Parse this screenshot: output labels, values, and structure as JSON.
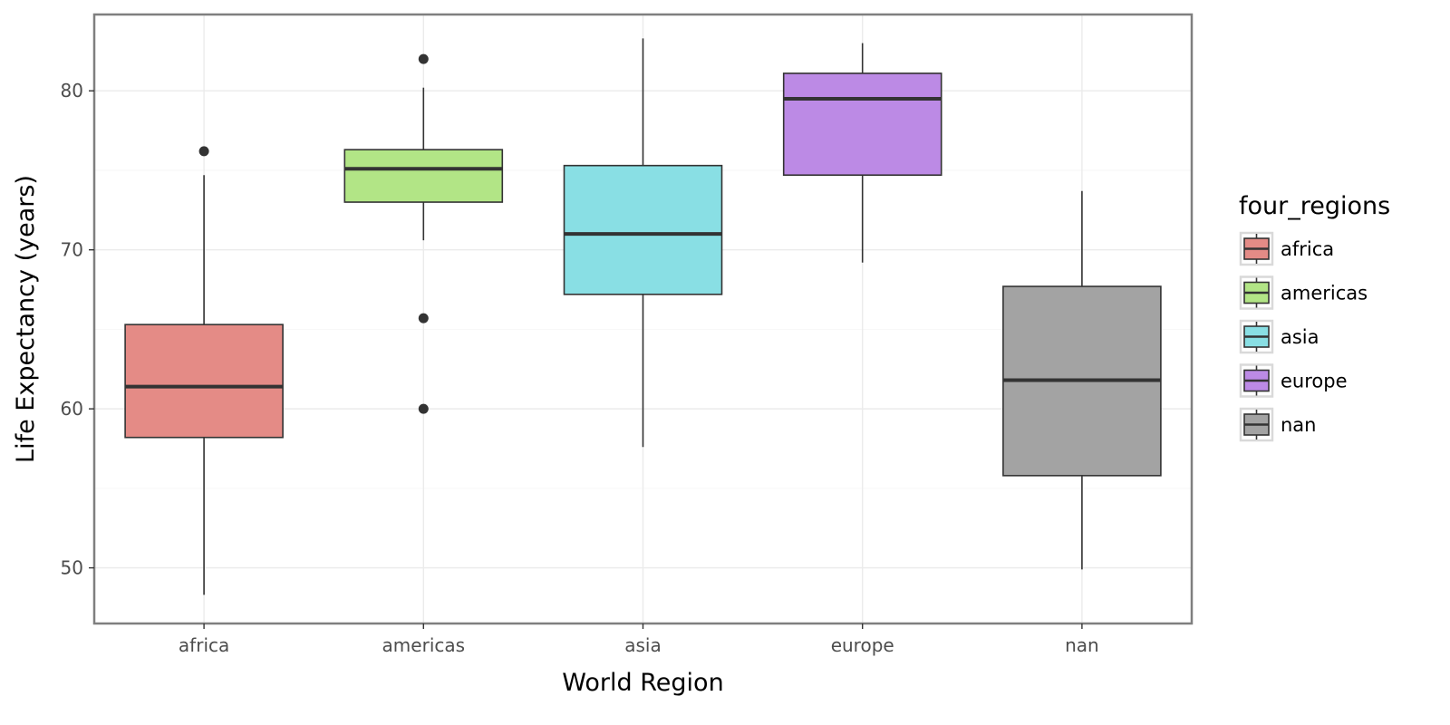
{
  "chart_data": {
    "type": "box",
    "xlabel": "World Region",
    "ylabel": "Life Expectancy (years)",
    "ylim": [
      46.5,
      84.8
    ],
    "yticks": [
      50,
      60,
      70,
      80
    ],
    "grid": true,
    "legend": {
      "title": "four_regions",
      "position": "right"
    },
    "categories": [
      "africa",
      "americas",
      "asia",
      "europe",
      "nan"
    ],
    "boxes": [
      {
        "category": "africa",
        "whisker_low": 48.3,
        "q1": 58.2,
        "median": 61.4,
        "q3": 65.3,
        "whisker_high": 74.7,
        "outliers": [
          76.2
        ],
        "color": "#e48b86"
      },
      {
        "category": "americas",
        "whisker_low": 70.6,
        "q1": 73.0,
        "median": 75.1,
        "q3": 76.3,
        "whisker_high": 80.2,
        "outliers": [
          82.0,
          65.7,
          60.0
        ],
        "color": "#b2e586"
      },
      {
        "category": "asia",
        "whisker_low": 57.6,
        "q1": 67.2,
        "median": 71.0,
        "q3": 75.3,
        "whisker_high": 83.3,
        "outliers": [],
        "color": "#89dfe4"
      },
      {
        "category": "europe",
        "whisker_low": 69.2,
        "q1": 74.7,
        "median": 79.5,
        "q3": 81.1,
        "whisker_high": 83.0,
        "outliers": [],
        "color": "#bc8ae5"
      },
      {
        "category": "nan",
        "whisker_low": 49.9,
        "q1": 55.8,
        "median": 61.8,
        "q3": 67.7,
        "whisker_high": 73.7,
        "outliers": [],
        "color": "#a3a3a3"
      }
    ]
  }
}
